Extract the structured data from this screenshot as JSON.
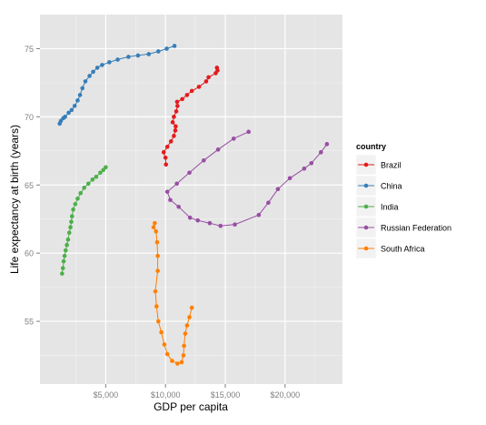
{
  "chart_data": {
    "type": "line",
    "title": "",
    "xlabel": "GDP per capita",
    "ylabel": "Life expectancy at birth (years)",
    "xlim": [
      -500,
      24800
    ],
    "ylim": [
      50.4,
      77.5
    ],
    "x_ticks": [
      5000,
      10000,
      15000,
      20000
    ],
    "x_tick_labels": [
      "$5,000",
      "$10,000",
      "$15,000",
      "$20,000"
    ],
    "y_ticks": [
      55,
      60,
      65,
      70,
      75
    ],
    "y_tick_labels": [
      "55",
      "60",
      "65",
      "70",
      "75"
    ],
    "grid": true,
    "legend": {
      "title": "country",
      "position": "right"
    },
    "series": [
      {
        "name": "Brazil",
        "color": "#E41A1C",
        "points": [
          [
            10040,
            66.5
          ],
          [
            10000,
            67.0
          ],
          [
            9850,
            67.4
          ],
          [
            10150,
            67.8
          ],
          [
            10460,
            68.2
          ],
          [
            10700,
            68.6
          ],
          [
            10820,
            69.0
          ],
          [
            10850,
            69.3
          ],
          [
            10600,
            69.6
          ],
          [
            10700,
            70.0
          ],
          [
            10900,
            70.4
          ],
          [
            11000,
            70.8
          ],
          [
            10970,
            71.1
          ],
          [
            11400,
            71.3
          ],
          [
            11800,
            71.6
          ],
          [
            12200,
            71.9
          ],
          [
            12800,
            72.2
          ],
          [
            13400,
            72.6
          ],
          [
            13600,
            72.9
          ],
          [
            14200,
            73.2
          ],
          [
            14350,
            73.4
          ],
          [
            14300,
            73.6
          ]
        ]
      },
      {
        "name": "China",
        "color": "#377EB8",
        "points": [
          [
            1150,
            69.5
          ],
          [
            1250,
            69.7
          ],
          [
            1450,
            69.9
          ],
          [
            1600,
            70.0
          ],
          [
            1900,
            70.3
          ],
          [
            2150,
            70.5
          ],
          [
            2400,
            70.8
          ],
          [
            2650,
            71.2
          ],
          [
            2850,
            71.6
          ],
          [
            3050,
            72.1
          ],
          [
            3300,
            72.6
          ],
          [
            3650,
            73.0
          ],
          [
            3950,
            73.3
          ],
          [
            4300,
            73.6
          ],
          [
            4700,
            73.8
          ],
          [
            5300,
            74.0
          ],
          [
            6000,
            74.2
          ],
          [
            6900,
            74.4
          ],
          [
            7700,
            74.5
          ],
          [
            8600,
            74.6
          ],
          [
            9400,
            74.8
          ],
          [
            10100,
            75.0
          ],
          [
            10750,
            75.2
          ]
        ]
      },
      {
        "name": "India",
        "color": "#4DAF4A",
        "points": [
          [
            1350,
            58.5
          ],
          [
            1420,
            58.9
          ],
          [
            1480,
            59.4
          ],
          [
            1560,
            59.8
          ],
          [
            1650,
            60.2
          ],
          [
            1750,
            60.6
          ],
          [
            1850,
            61.0
          ],
          [
            1950,
            61.5
          ],
          [
            2050,
            61.9
          ],
          [
            2120,
            62.3
          ],
          [
            2180,
            62.7
          ],
          [
            2280,
            63.2
          ],
          [
            2450,
            63.6
          ],
          [
            2650,
            64.0
          ],
          [
            2900,
            64.4
          ],
          [
            3200,
            64.8
          ],
          [
            3550,
            65.1
          ],
          [
            3900,
            65.4
          ],
          [
            4200,
            65.6
          ],
          [
            4550,
            65.9
          ],
          [
            4800,
            66.1
          ],
          [
            5000,
            66.3
          ]
        ]
      },
      {
        "name": "Russian Federation",
        "color": "#984EA3",
        "points": [
          [
            16950,
            68.9
          ],
          [
            15700,
            68.4
          ],
          [
            14400,
            67.6
          ],
          [
            13200,
            66.8
          ],
          [
            12000,
            65.9
          ],
          [
            10950,
            65.1
          ],
          [
            10150,
            64.5
          ],
          [
            10400,
            63.9
          ],
          [
            11100,
            63.4
          ],
          [
            12050,
            62.6
          ],
          [
            12700,
            62.4
          ],
          [
            13700,
            62.2
          ],
          [
            14600,
            62.0
          ],
          [
            15800,
            62.1
          ],
          [
            17800,
            62.8
          ],
          [
            18600,
            63.7
          ],
          [
            19400,
            64.7
          ],
          [
            20400,
            65.5
          ],
          [
            21600,
            66.2
          ],
          [
            22200,
            66.6
          ],
          [
            23000,
            67.4
          ],
          [
            23500,
            68.0
          ]
        ]
      },
      {
        "name": "South Africa",
        "color": "#FF7F00",
        "points": [
          [
            9100,
            62.2
          ],
          [
            9000,
            61.9
          ],
          [
            9200,
            61.6
          ],
          [
            9300,
            60.8
          ],
          [
            9350,
            59.8
          ],
          [
            9350,
            58.7
          ],
          [
            9150,
            57.2
          ],
          [
            9250,
            56.1
          ],
          [
            9400,
            55.0
          ],
          [
            9650,
            54.2
          ],
          [
            9900,
            53.3
          ],
          [
            10150,
            52.6
          ],
          [
            10550,
            52.1
          ],
          [
            11000,
            51.9
          ],
          [
            11350,
            52.0
          ],
          [
            11500,
            52.5
          ],
          [
            11550,
            53.2
          ],
          [
            11650,
            54.1
          ],
          [
            11800,
            54.7
          ],
          [
            12000,
            55.3
          ],
          [
            12200,
            56.0
          ]
        ]
      }
    ]
  }
}
